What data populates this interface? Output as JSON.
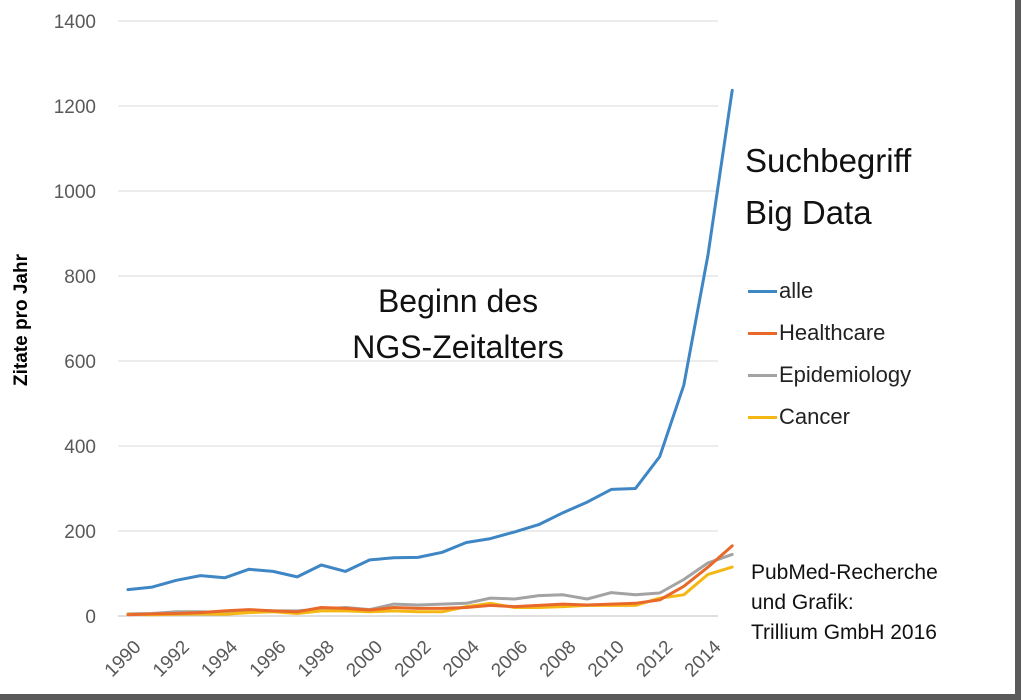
{
  "chart_data": {
    "type": "line",
    "ylabel": "Zitate pro Jahr",
    "ylim": [
      0,
      1400
    ],
    "yticks": [
      0,
      200,
      400,
      600,
      800,
      1000,
      1200,
      1400
    ],
    "xlim": [
      1990,
      2015
    ],
    "xtick_labels": [
      "1990",
      "1992",
      "1994",
      "1996",
      "1998",
      "2000",
      "2002",
      "2004",
      "2006",
      "2008",
      "2010",
      "2012",
      "2014"
    ],
    "x": [
      1990,
      1991,
      1992,
      1993,
      1994,
      1995,
      1996,
      1997,
      1998,
      1999,
      2000,
      2001,
      2002,
      2003,
      2004,
      2005,
      2006,
      2007,
      2008,
      2009,
      2010,
      2011,
      2012,
      2013,
      2014,
      2015
    ],
    "grid": "horizontal",
    "series": [
      {
        "name": "alle",
        "color": "#3e86c4",
        "values": [
          62,
          68,
          84,
          95,
          90,
          110,
          105,
          92,
          120,
          105,
          132,
          137,
          138,
          150,
          173,
          182,
          198,
          215,
          243,
          268,
          298,
          300,
          375,
          543,
          850,
          1237
        ]
      },
      {
        "name": "Healthcare",
        "color": "#e8692a",
        "values": [
          3,
          5,
          6,
          8,
          12,
          15,
          12,
          10,
          20,
          18,
          14,
          20,
          18,
          18,
          20,
          25,
          22,
          25,
          28,
          26,
          28,
          30,
          38,
          70,
          115,
          165
        ]
      },
      {
        "name": "Epidemiology",
        "color": "#a3a3a3",
        "values": [
          5,
          6,
          10,
          10,
          8,
          14,
          12,
          12,
          16,
          20,
          15,
          28,
          26,
          28,
          30,
          42,
          40,
          48,
          50,
          40,
          55,
          50,
          54,
          86,
          125,
          145
        ]
      },
      {
        "name": "Cancer",
        "color": "#f5b714",
        "values": [
          4,
          3,
          4,
          5,
          4,
          8,
          10,
          6,
          12,
          12,
          10,
          12,
          10,
          10,
          22,
          30,
          20,
          20,
          22,
          25,
          25,
          25,
          42,
          50,
          98,
          115
        ]
      }
    ],
    "annotation": [
      "Beginn des",
      "NGS-Zeitalters"
    ],
    "legend_title": [
      "Suchbegriff",
      "Big Data"
    ],
    "legend_position": "right",
    "source_note": [
      "PubMed-Recherche",
      "und Grafik:",
      "Trillium GmbH 2016"
    ]
  }
}
